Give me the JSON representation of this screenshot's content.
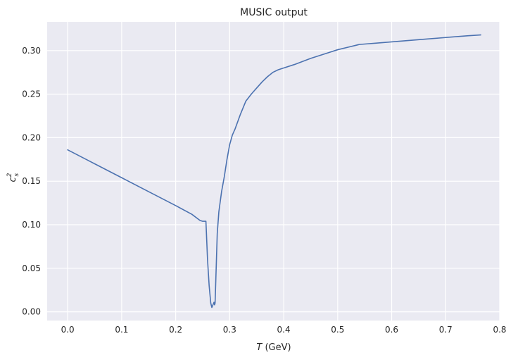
{
  "chart_data": {
    "type": "line",
    "title": "MUSIC output",
    "xlabel": {
      "var": "T",
      "unit": " (GeV)"
    },
    "ylabel": {
      "base": "c",
      "sup": "2",
      "sub": "s"
    },
    "xlim": [
      -0.038,
      0.8
    ],
    "ylim": [
      -0.01,
      0.333
    ],
    "xticks": [
      0.0,
      0.1,
      0.2,
      0.3,
      0.4,
      0.5,
      0.6,
      0.7,
      0.8
    ],
    "xtick_labels": [
      "0.0",
      "0.1",
      "0.2",
      "0.3",
      "0.4",
      "0.5",
      "0.6",
      "0.7",
      "0.8"
    ],
    "yticks": [
      0.0,
      0.05,
      0.1,
      0.15,
      0.2,
      0.25,
      0.3
    ],
    "ytick_labels": [
      "0.00",
      "0.05",
      "0.10",
      "0.15",
      "0.20",
      "0.25",
      "0.30"
    ],
    "grid": true,
    "colors": {
      "background": "#eaeaf2",
      "grid": "#ffffff",
      "line": "#4c72b0",
      "text": "#262626"
    },
    "series": [
      {
        "x": [
          0.0,
          0.05,
          0.1,
          0.15,
          0.2,
          0.23,
          0.245,
          0.25,
          0.253,
          0.256,
          0.259,
          0.262,
          0.265,
          0.267,
          0.269,
          0.271,
          0.272,
          0.273,
          0.275,
          0.277,
          0.28,
          0.285,
          0.29,
          0.295,
          0.3,
          0.305,
          0.31,
          0.32,
          0.33,
          0.34,
          0.35,
          0.36,
          0.37,
          0.38,
          0.39,
          0.4,
          0.42,
          0.45,
          0.48,
          0.5,
          0.52,
          0.54,
          0.58,
          0.62,
          0.66,
          0.7,
          0.74,
          0.765
        ],
        "y": [
          0.186,
          0.17,
          0.154,
          0.138,
          0.122,
          0.112,
          0.105,
          0.104,
          0.104,
          0.104,
          0.06,
          0.03,
          0.01,
          0.005,
          0.008,
          0.011,
          0.008,
          0.01,
          0.05,
          0.09,
          0.115,
          0.138,
          0.155,
          0.175,
          0.192,
          0.203,
          0.21,
          0.227,
          0.242,
          0.25,
          0.257,
          0.264,
          0.27,
          0.275,
          0.278,
          0.28,
          0.284,
          0.291,
          0.297,
          0.301,
          0.304,
          0.307,
          0.309,
          0.311,
          0.313,
          0.315,
          0.317,
          0.318
        ]
      }
    ]
  }
}
